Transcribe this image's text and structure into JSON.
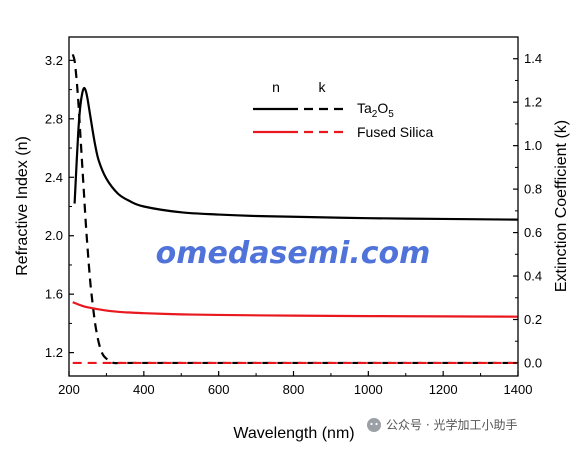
{
  "chart_data": {
    "type": "line",
    "title": "",
    "xlabel": "Wavelength (nm)",
    "ylabel_left": "Refractive Index (n)",
    "ylabel_right": "Extinction Coefficient (k)",
    "xlim": [
      200,
      1400
    ],
    "ylim_left": [
      1.04,
      3.36
    ],
    "ylim_right": [
      -0.06,
      1.5
    ],
    "x_ticks": [
      200,
      400,
      600,
      800,
      1000,
      1200,
      1400
    ],
    "y_left_ticks": [
      "1.2",
      "1.6",
      "2.0",
      "2.4",
      "2.8",
      "3.2"
    ],
    "y_right_ticks": [
      "0.0",
      "0.2",
      "0.4",
      "0.6",
      "0.8",
      "1.0",
      "1.2",
      "1.4"
    ],
    "legend": {
      "placement": "top-right",
      "header_n": "n",
      "header_k": "k",
      "entries": [
        {
          "label_main": "Ta",
          "sub1": "2",
          "label_mid": "O",
          "sub2": "5",
          "color": "#000000"
        },
        {
          "label_main": "Fused Silica",
          "color": "#e8181e"
        }
      ]
    },
    "series": [
      {
        "material": "Ta2O5",
        "quantity": "n",
        "axis": "left",
        "color": "#000000",
        "dash": "solid",
        "x": [
          215,
          220,
          225,
          230,
          235,
          240,
          245,
          250,
          260,
          270,
          280,
          300,
          330,
          360,
          400,
          500,
          600,
          700,
          800,
          1000,
          1200,
          1400
        ],
        "y": [
          2.22,
          2.48,
          2.72,
          2.88,
          2.97,
          3.01,
          2.99,
          2.93,
          2.77,
          2.62,
          2.51,
          2.39,
          2.29,
          2.24,
          2.2,
          2.16,
          2.145,
          2.135,
          2.13,
          2.12,
          2.115,
          2.11
        ]
      },
      {
        "material": "Ta2O5",
        "quantity": "k",
        "axis": "right",
        "color": "#000000",
        "dash": "dashed",
        "x": [
          210,
          215,
          220,
          225,
          230,
          235,
          240,
          245,
          250,
          255,
          260,
          270,
          280,
          290,
          300,
          310,
          320,
          340,
          400,
          600,
          800,
          1000,
          1200,
          1400
        ],
        "y": [
          1.42,
          1.39,
          1.31,
          1.2,
          1.06,
          0.92,
          0.78,
          0.64,
          0.52,
          0.41,
          0.32,
          0.18,
          0.09,
          0.04,
          0.02,
          0.01,
          0.0,
          0.0,
          0.0,
          0.0,
          0.0,
          0.0,
          0.0,
          0.0
        ]
      },
      {
        "material": "Fused Silica",
        "quantity": "n",
        "axis": "left",
        "color": "#e8181e",
        "dash": "solid",
        "x": [
          210,
          230,
          250,
          300,
          350,
          400,
          500,
          600,
          800,
          1000,
          1200,
          1400
        ],
        "y": [
          1.545,
          1.525,
          1.51,
          1.488,
          1.476,
          1.47,
          1.462,
          1.458,
          1.453,
          1.45,
          1.448,
          1.446
        ]
      },
      {
        "material": "Fused Silica",
        "quantity": "k",
        "axis": "right",
        "color": "#e8181e",
        "dash": "dashed",
        "x": [
          210,
          1400
        ],
        "y": [
          0.0,
          0.0
        ]
      }
    ]
  },
  "watermark": "omedasemi.com",
  "credit": "公众号 · 光学加工小助手"
}
